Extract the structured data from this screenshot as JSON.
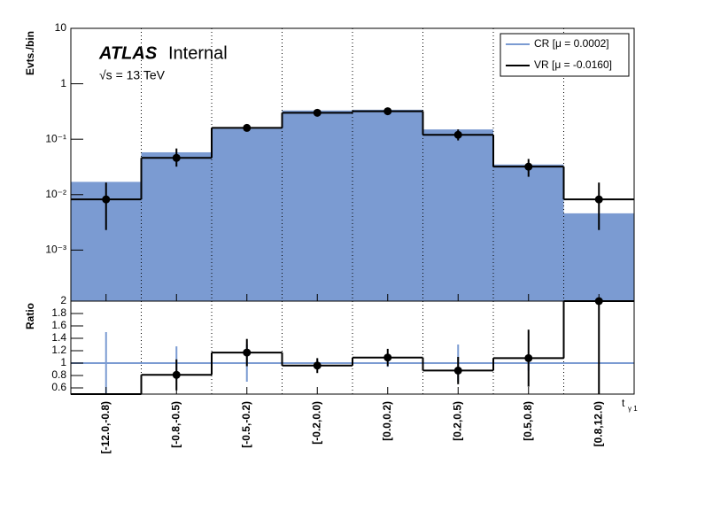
{
  "chart_data": [
    {
      "type": "bar",
      "log_y": true,
      "grid_x": true,
      "legend": "top-right",
      "experiment": "ATLAS",
      "status": "Internal",
      "energy": "√s = 13 TeV",
      "ylabel": "Evts./bin",
      "ylim": [
        0.00012,
        10
      ],
      "yticks": [
        {
          "value": 0.001,
          "label": "10⁻³"
        },
        {
          "value": 0.01,
          "label": "10⁻²"
        },
        {
          "value": 0.1,
          "label": "10⁻¹"
        },
        1,
        10
      ],
      "series": [
        {
          "name": "CR [μ = 0.0002]",
          "color": "#7b9bd2",
          "style": "filled",
          "values": [
            0.017,
            0.058,
            0.155,
            0.33,
            0.34,
            0.15,
            0.035,
            0.0046
          ]
        },
        {
          "name": "VR [μ = -0.0160]",
          "color": "#000000",
          "style": "step",
          "values": [
            0.0082,
            0.046,
            0.16,
            0.3,
            0.32,
            0.12,
            0.032,
            0.0082
          ],
          "errors_low": [
            0.0059,
            0.014,
            0.02,
            0.02,
            0.02,
            0.025,
            0.011,
            0.0059
          ],
          "errors_high": [
            0.0083,
            0.022,
            0.02,
            0.02,
            0.02,
            0.03,
            0.012,
            0.0083
          ]
        }
      ]
    },
    {
      "type": "step",
      "grid_x": true,
      "ylabel": "Ratio",
      "xlabel": "t",
      "xlabel_sub": "γ 1",
      "categories": [
        "[-12.0,-0.8)",
        "[-0.8,-0.5)",
        "[-0.5,-0.2)",
        "[-0.2,0.0)",
        "[0.0,0.2)",
        "[0.2,0.5)",
        "[0.5,0.8)",
        "[0.8,12.0)"
      ],
      "ylim": [
        0.5,
        2
      ],
      "yticks": [
        0.6,
        0.8,
        1,
        1.2,
        1.4,
        1.6,
        1.8,
        2
      ],
      "reference": 1,
      "reference_color": "#7b9bd2",
      "reference_errors": [
        0.5,
        0.27,
        0.3,
        0.06,
        0.06,
        0.3,
        0.12,
        null
      ],
      "values": [
        0.5,
        0.81,
        1.17,
        0.96,
        1.09,
        0.88,
        1.08,
        2.0
      ],
      "points": [
        null,
        0.81,
        1.17,
        0.96,
        1.09,
        0.88,
        1.08,
        2.0
      ],
      "errors": [
        null,
        0.25,
        0.22,
        0.12,
        0.14,
        0.22,
        0.46,
        1.5
      ],
      "color": "#000000"
    }
  ]
}
